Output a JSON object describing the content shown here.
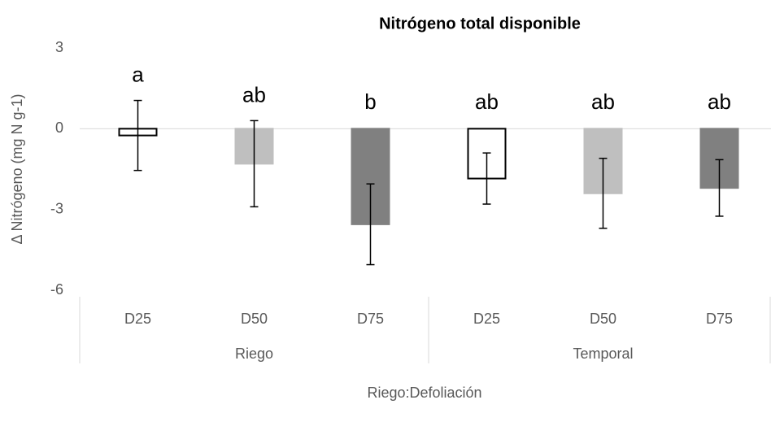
{
  "chart_data": {
    "type": "bar",
    "title": "Nitrógeno total disponible",
    "y_label": "Δ Nitrógeno (mg N g-1)",
    "x_label": "Riego:Defoliación",
    "categories": [
      "D25",
      "D50",
      "D75",
      "D25",
      "D50",
      "D75"
    ],
    "groups": [
      "Riego",
      "Temporal"
    ],
    "values": [
      -0.25,
      -1.3,
      -3.55,
      -1.85,
      -2.4,
      -2.2
    ],
    "errors": [
      1.3,
      1.6,
      1.5,
      0.95,
      1.3,
      1.05
    ],
    "annotations": [
      "a",
      "ab",
      "b",
      "ab",
      "ab",
      "ab"
    ],
    "colors": [
      "#ffffff",
      "#bfbfbf",
      "#808080",
      "#ffffff",
      "#bfbfbf",
      "#808080"
    ],
    "edgecolors": [
      "#000000",
      "#bfbfbf",
      "#808080",
      "#000000",
      "#bfbfbf",
      "#808080"
    ],
    "ylim": [
      -6,
      3
    ],
    "yticks": [
      -6,
      -3,
      0,
      3
    ]
  }
}
